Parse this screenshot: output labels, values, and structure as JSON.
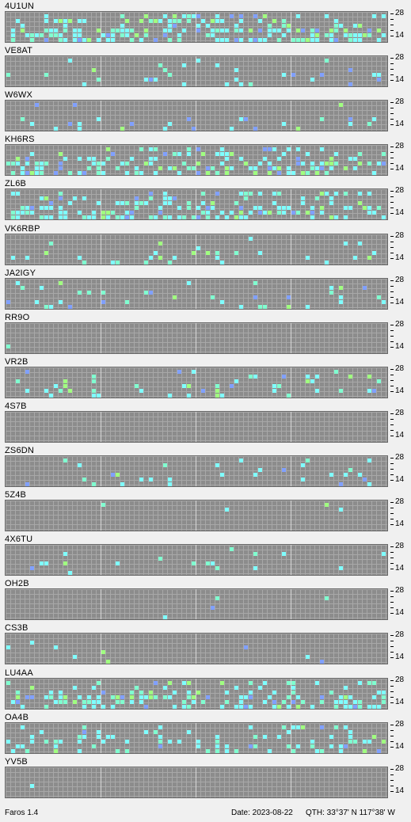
{
  "app": {
    "name": "Faros 1.4"
  },
  "status": {
    "date": "Date: 2023-08-22",
    "qth": "QTH: 33°37' N  117°38' W"
  },
  "scale": {
    "top": "28",
    "bottom": "14"
  },
  "colors": {
    "background": "#8c8c8c",
    "gridline": "#a8a8a8",
    "hourline": "#d8d8d8",
    "cyan": "#7fffff",
    "aqua": "#80ffd0",
    "green": "#a0ff80",
    "blue": "#80a0ff",
    "violet": "#8080ff",
    "gray": "#a8a8a8"
  },
  "beacons": [
    {
      "call": "4U1UN"
    },
    {
      "call": "VE8AT"
    },
    {
      "call": "W6WX"
    },
    {
      "call": "KH6RS"
    },
    {
      "call": "ZL6B"
    },
    {
      "call": "VK6RBP"
    },
    {
      "call": "JA2IGY"
    },
    {
      "call": "RR9O"
    },
    {
      "call": "VR2B"
    },
    {
      "call": "4S7B"
    },
    {
      "call": "ZS6DN"
    },
    {
      "call": "5Z4B"
    },
    {
      "call": "4X6TU"
    },
    {
      "call": "OH2B"
    },
    {
      "call": "CS3B"
    },
    {
      "call": "LU4AA"
    },
    {
      "call": "OA4B"
    },
    {
      "call": "YV5B"
    }
  ]
}
